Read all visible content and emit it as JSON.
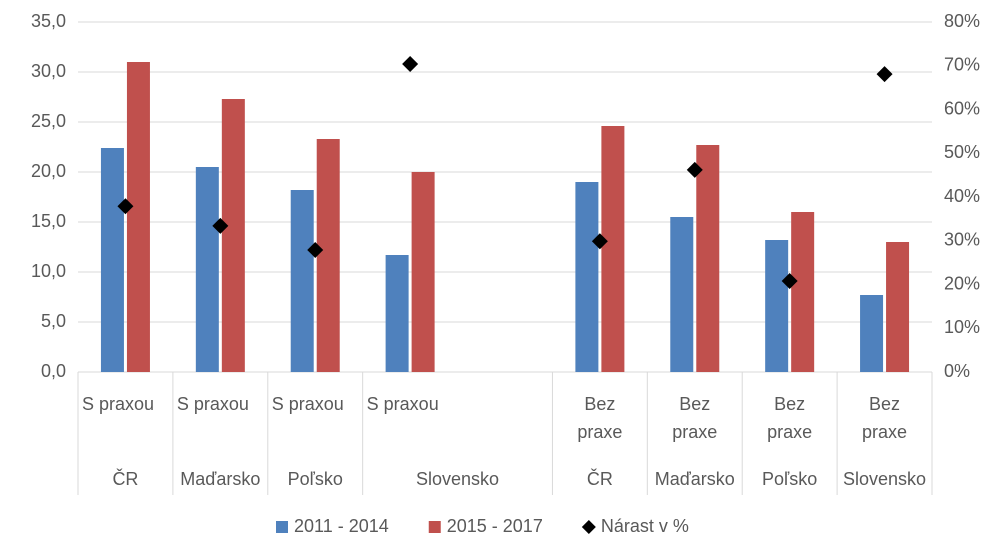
{
  "chart_data": {
    "type": "bar",
    "categories": [
      "S praxou",
      "S praxou",
      "S praxou",
      "S praxou",
      null,
      "Bez praxe",
      "Bez praxe",
      "Bez praxe",
      "Bez praxe"
    ],
    "groups": [
      "ČR",
      "Maďarsko",
      "Poľsko",
      "Slovensko",
      null,
      "ČR",
      "Maďarsko",
      "Poľsko",
      "Slovensko"
    ],
    "series": [
      {
        "name": "2011 - 2014",
        "color": "#4f81bd",
        "values": [
          22.4,
          20.5,
          18.2,
          11.7,
          null,
          19.0,
          15.5,
          13.2,
          7.7
        ]
      },
      {
        "name": "2015 - 2017",
        "color": "#c0504d",
        "values": [
          31.0,
          27.3,
          23.3,
          20.0,
          null,
          24.6,
          22.7,
          16.0,
          13.0
        ]
      },
      {
        "name": "Nárast v %",
        "color": "#000000",
        "type": "scatter",
        "axis": "y2",
        "values": [
          37.9,
          33.4,
          27.9,
          70.4,
          null,
          29.9,
          46.2,
          20.8,
          68.1
        ]
      }
    ],
    "ylim": [
      0,
      35
    ],
    "yticks": [
      {
        "value": 0,
        "label": "0,0"
      },
      {
        "value": 5,
        "label": "5,0"
      },
      {
        "value": 10,
        "label": "10,0"
      },
      {
        "value": 15,
        "label": "15,0"
      },
      {
        "value": 20,
        "label": "20,0"
      },
      {
        "value": 25,
        "label": "25,0"
      },
      {
        "value": 30,
        "label": "30,0"
      },
      {
        "value": 35,
        "label": "35,0"
      }
    ],
    "y2lim": [
      0,
      80
    ],
    "y2ticks": [
      {
        "value": 0,
        "label": "0%"
      },
      {
        "value": 10,
        "label": "10%"
      },
      {
        "value": 20,
        "label": "20%"
      },
      {
        "value": 30,
        "label": "30%"
      },
      {
        "value": 40,
        "label": "40%"
      },
      {
        "value": 50,
        "label": "50%"
      },
      {
        "value": 60,
        "label": "60%"
      },
      {
        "value": 70,
        "label": "70%"
      },
      {
        "value": 80,
        "label": "80%"
      }
    ],
    "grid": true,
    "legend": "bottom"
  }
}
